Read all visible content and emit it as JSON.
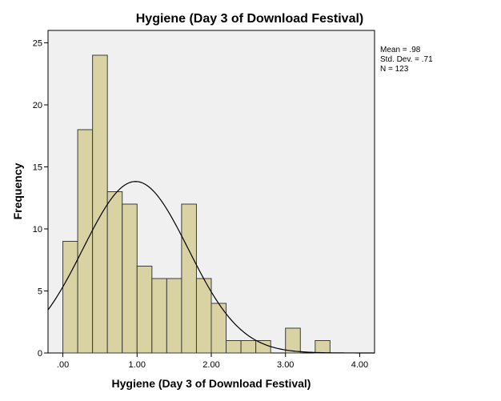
{
  "chart_data": {
    "type": "histogram",
    "title": "Hygiene (Day 3 of Download Festival)",
    "xlabel": "Hygiene (Day 3 of Download Festival)",
    "ylabel": "Frequency",
    "bin_width": 0.2,
    "bin_starts": [
      0.0,
      0.2,
      0.4,
      0.6,
      0.8,
      1.0,
      1.2,
      1.4,
      1.6,
      1.8,
      2.0,
      2.2,
      2.4,
      2.6,
      2.8,
      3.0,
      3.2,
      3.4
    ],
    "frequencies": [
      9,
      18,
      24,
      13,
      12,
      7,
      6,
      6,
      12,
      6,
      4,
      1,
      1,
      1,
      0,
      2,
      0,
      1
    ],
    "xlim": [
      -0.2,
      4.2
    ],
    "ylim": [
      0,
      26
    ],
    "x_ticks": [
      0,
      1,
      2,
      3,
      4
    ],
    "x_tick_labels": [
      ".00",
      "1.00",
      "2.00",
      "3.00",
      "4.00"
    ],
    "y_ticks": [
      0,
      5,
      10,
      15,
      20,
      25
    ],
    "y_tick_labels": [
      "0",
      "5",
      "10",
      "15",
      "20",
      "25"
    ],
    "normal_curve": {
      "mean": 0.98,
      "sd": 0.71,
      "n": 123
    },
    "stats_text": [
      "Mean = .98",
      "Std. Dev. = .71",
      "N = 123"
    ],
    "colors": {
      "bar_fill": "#d9d3a3",
      "bar_stroke": "#3c3c3c",
      "plot_bg": "#f0f0f0",
      "curve": "#000000"
    },
    "grid": false
  }
}
